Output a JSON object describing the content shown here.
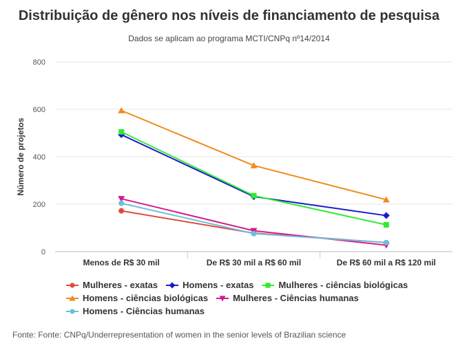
{
  "chart_data": {
    "type": "line",
    "title": "Distribuição de gênero nos níveis de financiamento de pesquisa",
    "subtitle": "Dados se aplicam ao programa MCTI/CNPq nº14/2014",
    "xlabel": "",
    "ylabel": "Número de projetos",
    "ylim": [
      0,
      800
    ],
    "yticks": [
      0,
      200,
      400,
      600,
      800
    ],
    "categories": [
      "Menos de R$ 30 mil",
      "De R$ 30 mil a R$ 60 mil",
      "De R$ 60 mil a R$ 120 mil"
    ],
    "grid": true,
    "legend_position": "bottom",
    "series": [
      {
        "name": "Mulheres - exatas",
        "color": "#e04b3b",
        "marker": "circle",
        "values": [
          172,
          78,
          38
        ]
      },
      {
        "name": "Homens - exatas",
        "color": "#1a1acc",
        "marker": "diamond",
        "values": [
          493,
          232,
          152
        ]
      },
      {
        "name": "Mulheres - ciências biológicas",
        "color": "#33e833",
        "marker": "square",
        "values": [
          505,
          236,
          113
        ]
      },
      {
        "name": "Homens - ciências biológicas",
        "color": "#f08c1e",
        "marker": "triangle-up",
        "values": [
          595,
          363,
          219
        ]
      },
      {
        "name": "Mulheres - Ciências humanas",
        "color": "#d61a8c",
        "marker": "triangle-down",
        "values": [
          223,
          88,
          27
        ]
      },
      {
        "name": "Homens - Ciências humanas",
        "color": "#6cbfdc",
        "marker": "circle",
        "values": [
          204,
          76,
          38
        ]
      }
    ]
  },
  "source": "Fonte: Fonte: CNPq/Underrepresentation of women in the senior levels of Brazilian science"
}
